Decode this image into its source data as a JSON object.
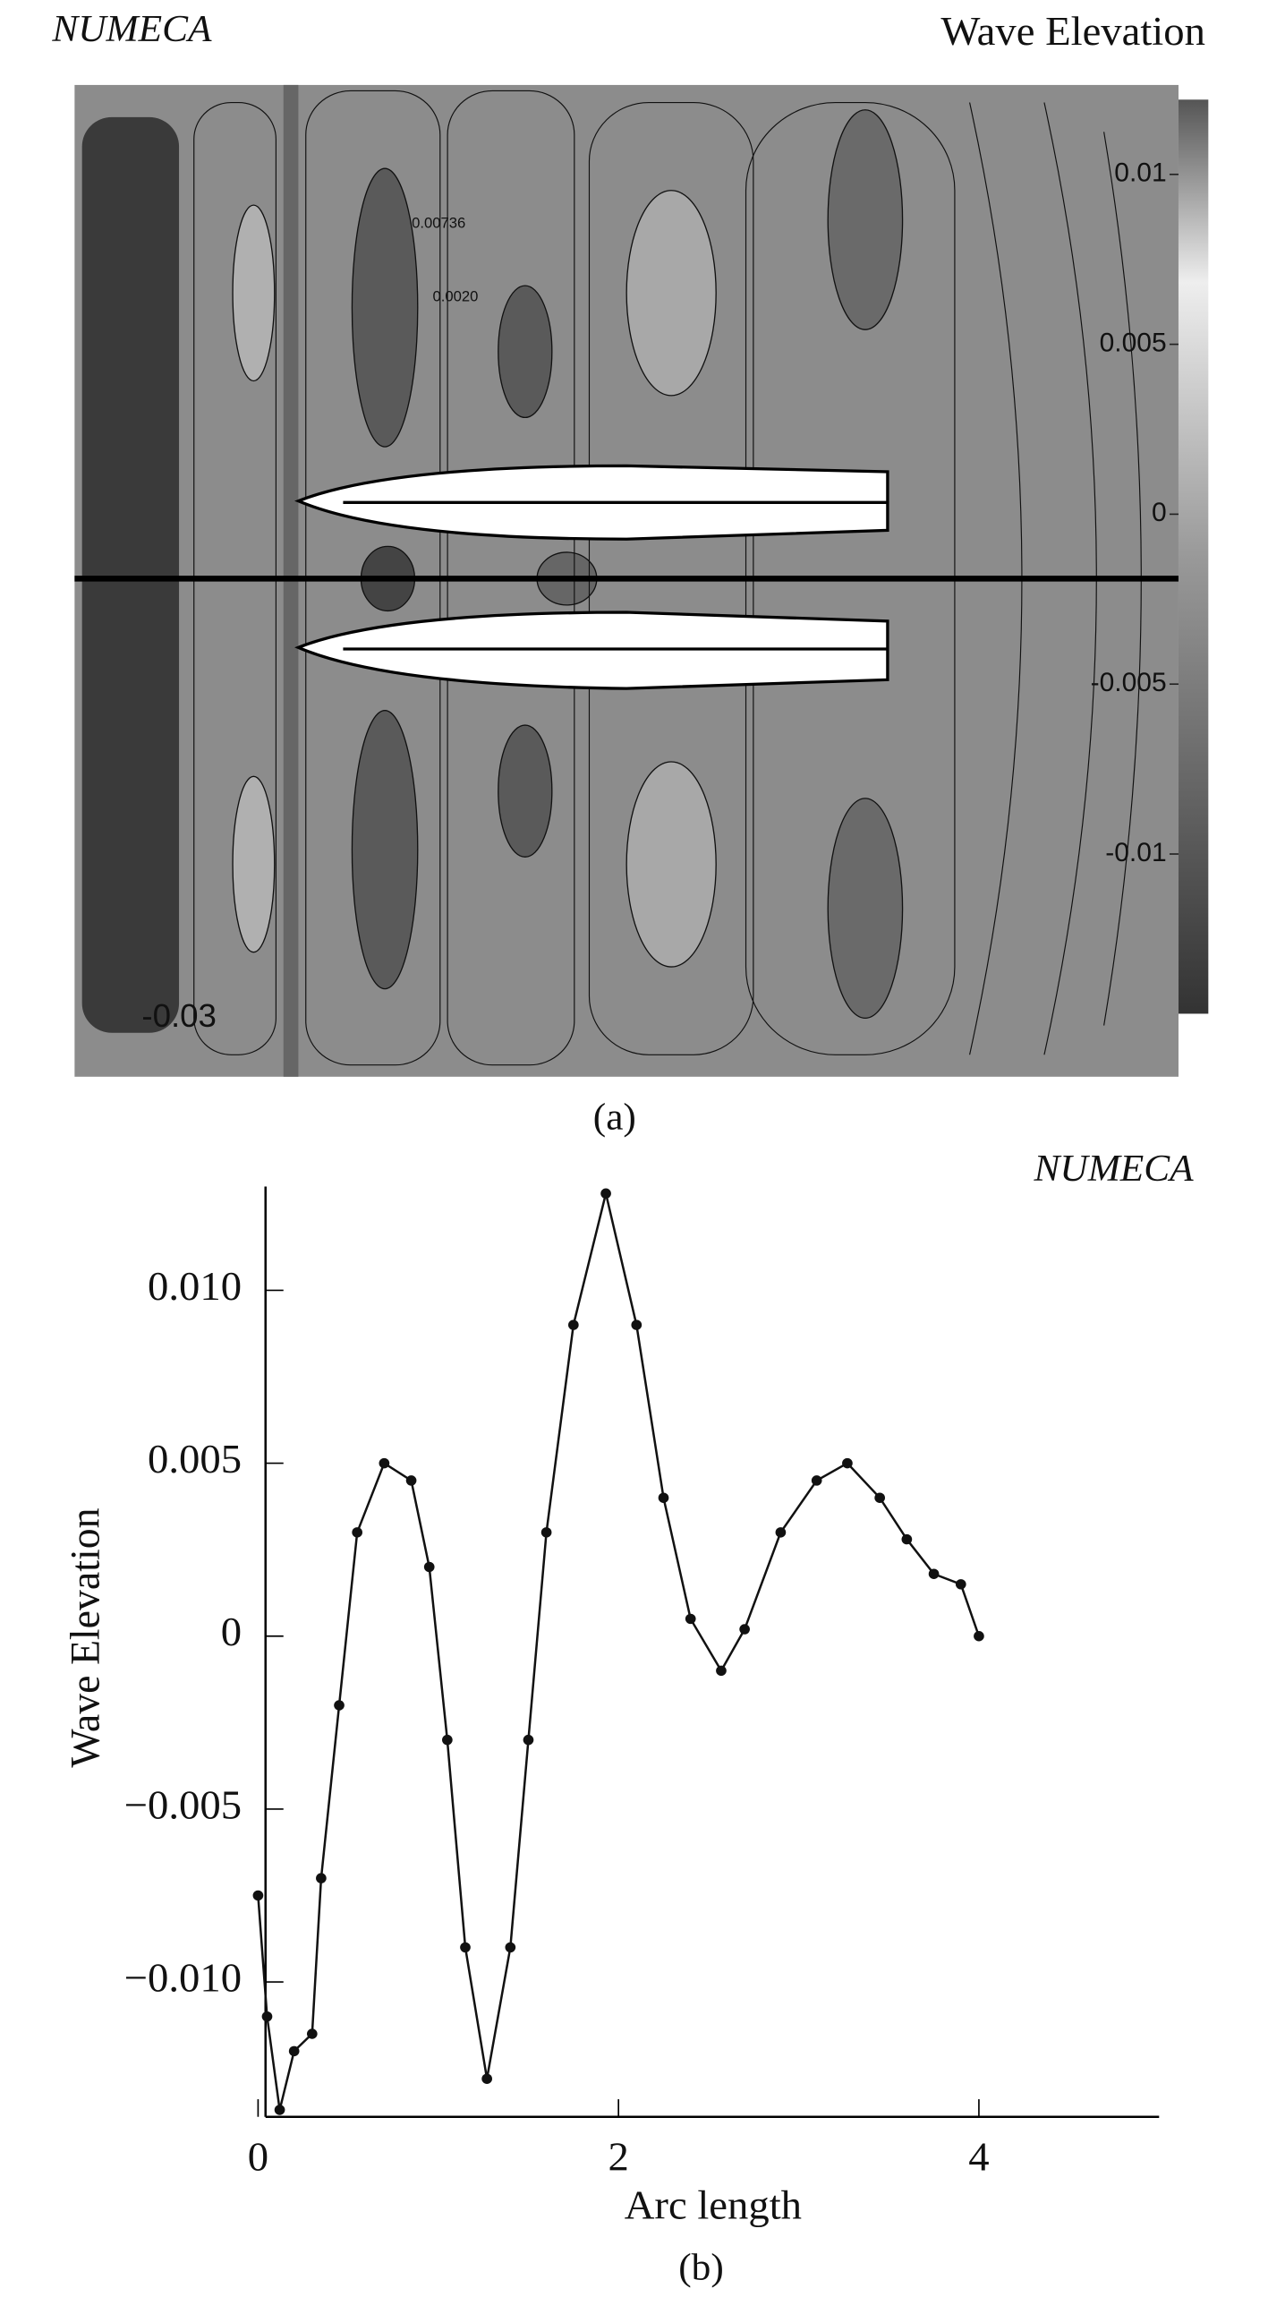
{
  "chart_data": [
    {
      "type": "contour",
      "title": "Wave Elevation",
      "watermark": "NUMECA",
      "caption": "(a)",
      "colorbar_lim": [
        -0.0147,
        0.0122
      ],
      "colorbar_ticks": [
        0.01,
        0.005,
        0,
        -0.005,
        -0.01
      ],
      "annotations": [
        "0.00736",
        "0.0020",
        "-0.03"
      ]
    },
    {
      "type": "line",
      "watermark": "NUMECA",
      "caption": "(b)",
      "xlabel": "Arc length",
      "ylabel": "Wave Elevation",
      "x": [
        0,
        0.05,
        0.12,
        0.2,
        0.3,
        0.35,
        0.45,
        0.55,
        0.7,
        0.85,
        0.95,
        1.05,
        1.15,
        1.27,
        1.4,
        1.5,
        1.6,
        1.75,
        1.93,
        2.1,
        2.25,
        2.4,
        2.57,
        2.7,
        2.9,
        3.1,
        3.27,
        3.45,
        3.6,
        3.75,
        3.9,
        4.0
      ],
      "series": [
        {
          "color": "#111111",
          "values": [
            -0.0075,
            -0.011,
            -0.0137,
            -0.012,
            -0.0115,
            -0.007,
            -0.002,
            0.003,
            0.005,
            0.0045,
            0.002,
            -0.003,
            -0.009,
            -0.0128,
            -0.009,
            -0.003,
            0.003,
            0.009,
            0.0128,
            0.009,
            0.004,
            0.0005,
            -0.001,
            0.0002,
            0.003,
            0.0045,
            0.005,
            0.004,
            0.0028,
            0.0018,
            0.0015,
            0.0
          ]
        }
      ],
      "xlim": [
        0,
        5
      ],
      "ylim": [
        -0.0139,
        0.013
      ],
      "xticks": [
        0,
        2,
        4
      ],
      "yticks": [
        {
          "value": 0.01,
          "label": "0.010"
        },
        {
          "value": 0.005,
          "label": "0.005"
        },
        0,
        {
          "value": -0.005,
          "label": "−0.005"
        },
        {
          "value": -0.01,
          "label": "−0.010"
        }
      ]
    }
  ]
}
